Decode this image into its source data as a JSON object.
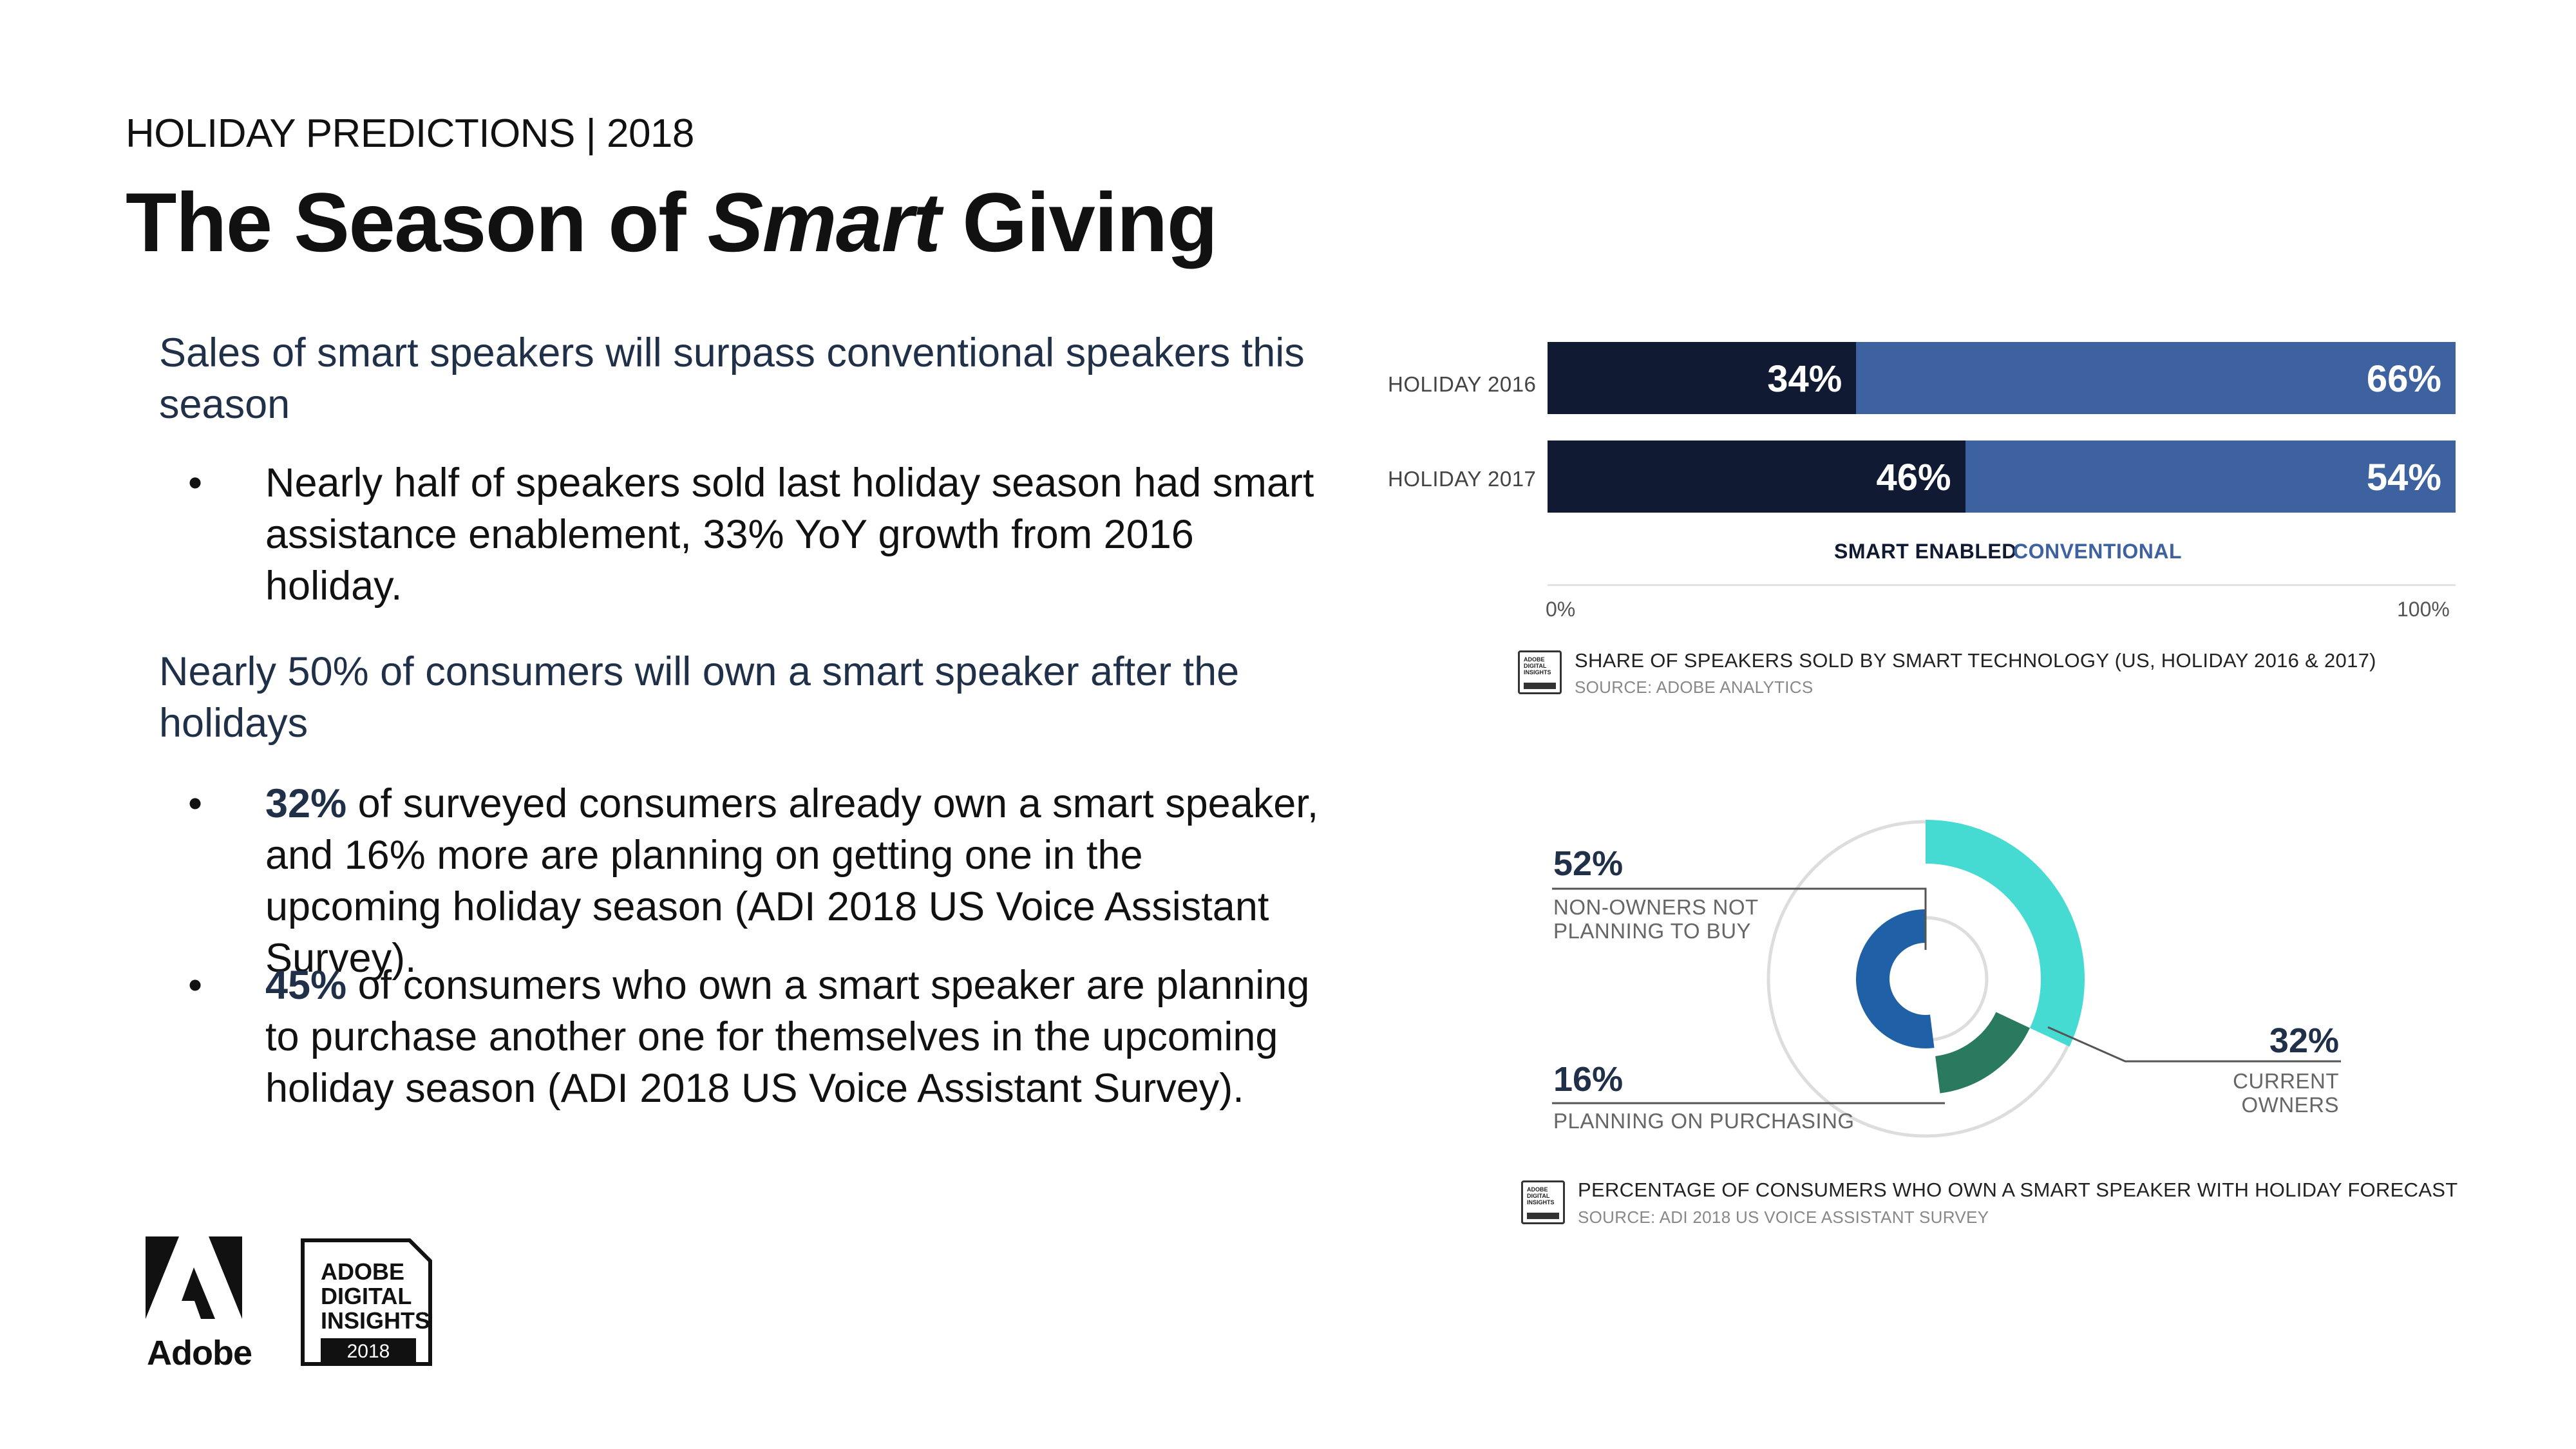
{
  "header": {
    "kicker": "HOLIDAY PREDICTIONS | 2018",
    "title_pre": "The Season of ",
    "title_em": "Smart",
    "title_post": " Giving"
  },
  "body": {
    "lead1": "Sales of smart speakers will surpass conventional speakers this season",
    "bullet1": "Nearly half of speakers sold last holiday season had smart assistance enablement, 33% YoY growth from 2016 holiday.",
    "lead2": "Nearly 50% of consumers will own a smart speaker after the holidays",
    "bullet2_pct": "32%",
    "bullet2_text": " of surveyed consumers already own a smart speaker, and 16% more are planning on getting one in the upcoming holiday season (ADI 2018 US Voice Assistant Survey).",
    "bullet3_pct": "45%",
    "bullet3_text": " of consumers who own a smart speaker are planning to purchase another one for themselves in the upcoming holiday season (ADI 2018 US Voice Assistant Survey).",
    "bullet_symbol": "•"
  },
  "colors": {
    "smart": "#101b33",
    "conventional": "#3e62a0",
    "current_owners": "#45dbd2",
    "planning": "#2a7a60",
    "non_owners": "#1f60a6",
    "ring": "#dddddd"
  },
  "chart_data": [
    {
      "type": "bar",
      "orientation": "horizontal-stacked",
      "categories": [
        "HOLIDAY 2016",
        "HOLIDAY 2017"
      ],
      "series": [
        {
          "name": "SMART ENABLED",
          "values": [
            34,
            46
          ],
          "labels": [
            "34%",
            "46%"
          ]
        },
        {
          "name": "CONVENTIONAL",
          "values": [
            66,
            54
          ],
          "labels": [
            "66%",
            "54%"
          ]
        }
      ],
      "xlim": [
        0,
        100
      ],
      "tick_labels": [
        "0%",
        "100%"
      ],
      "title": "SHARE OF SPEAKERS SOLD BY SMART TECHNOLOGY (US, HOLIDAY 2016 & 2017)",
      "source": "SOURCE: ADOBE ANALYTICS",
      "badge": "ADOBE DIGITAL INSIGHTS"
    },
    {
      "type": "pie",
      "style": "nested-donut",
      "slices": [
        {
          "name": "CURRENT OWNERS",
          "value": 32,
          "label": "32%"
        },
        {
          "name": "PLANNING ON PURCHASING",
          "value": 16,
          "label": "16%"
        },
        {
          "name": "NON-OWNERS NOT PLANNING TO BUY",
          "value": 52,
          "label": "52%"
        }
      ],
      "captions": {
        "non_owners": "NON-OWNERS NOT PLANNING TO BUY",
        "planning": "PLANNING ON PURCHASING",
        "current": "CURRENT OWNERS"
      },
      "title": "PERCENTAGE OF CONSUMERS WHO OWN A SMART SPEAKER WITH HOLIDAY FORECAST",
      "source": "SOURCE: ADI 2018 US VOICE ASSISTANT SURVEY",
      "badge": "ADOBE DIGITAL INSIGHTS"
    }
  ],
  "logos": {
    "adobe_word": "Adobe",
    "adi_line1": "ADOBE",
    "adi_line2": "DIGITAL",
    "adi_line3": "INSIGHTS",
    "adi_year": "2018"
  }
}
